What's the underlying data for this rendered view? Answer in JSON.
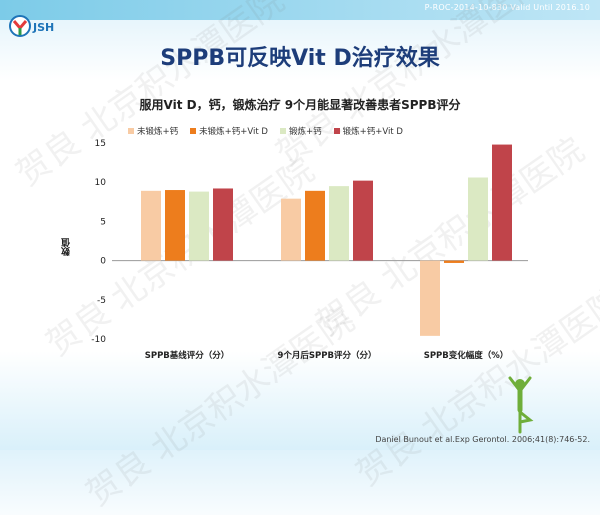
{
  "header": {
    "ref_code": "P-ROC-2014-10-830  Valid Until 2016.10",
    "logo_text": "JSH"
  },
  "slide": {
    "title": "SPPB可反映Vit D治疗效果"
  },
  "watermark_text": "贺良 北京积水潭医院",
  "footer": {
    "reference": "Daniel Bunout et al.Exp Gerontol. 2006;41(8):746-52."
  },
  "colors": {
    "series1": "#f8cba4",
    "series2": "#ed7d1d",
    "series3": "#dbe9c3",
    "series4": "#c0444a",
    "title": "#1d3d7a"
  },
  "chart_data": {
    "type": "bar",
    "title": "服用Vit D，钙，锻炼治疗 9个月能显著改善患者SPPB评分",
    "ylabel": "数值",
    "ylim": [
      -10,
      15
    ],
    "yticks": [
      "15",
      "10",
      "5",
      "0",
      "-5",
      "-10"
    ],
    "categories": [
      "SPPB基线评分（分）",
      "9个月后SPPB评分（分）",
      "SPPB变化幅度（%）"
    ],
    "series": [
      {
        "name": "未锻炼+钙",
        "values": [
          8.9,
          7.9,
          -9.6
        ]
      },
      {
        "name": "未锻炼+钙+Vit D",
        "values": [
          9.0,
          8.9,
          -0.3
        ]
      },
      {
        "name": "锻炼+钙",
        "values": [
          8.8,
          9.5,
          10.6
        ]
      },
      {
        "name": "锻炼+钙+Vit D",
        "values": [
          9.2,
          10.2,
          14.8
        ]
      }
    ],
    "legend_position": "top",
    "grid": false
  }
}
